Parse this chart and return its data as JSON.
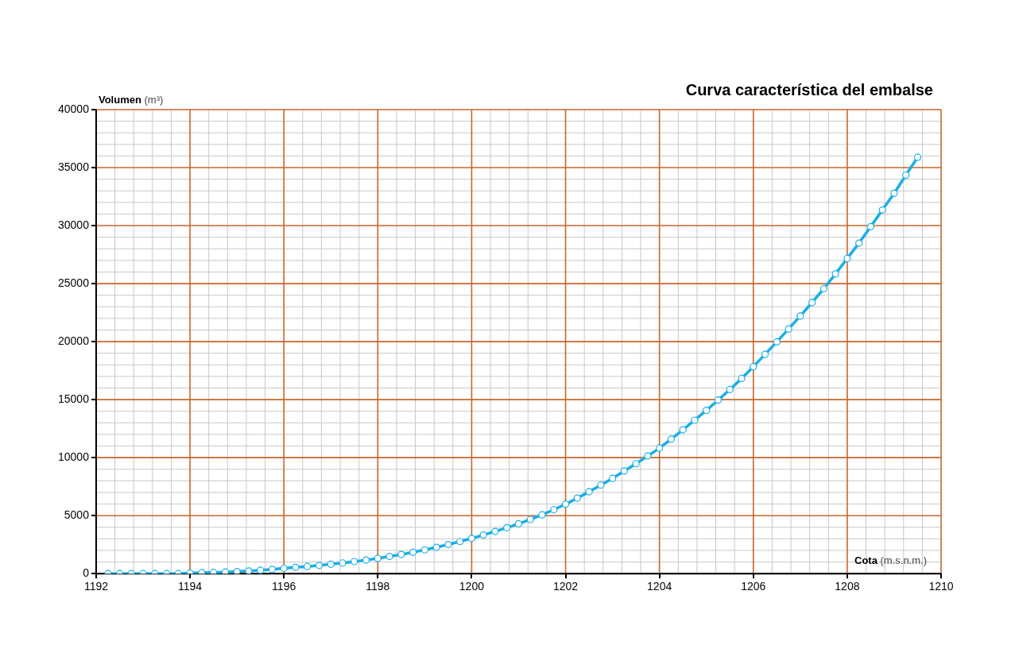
{
  "chart_data": {
    "type": "line",
    "title": "Curva característica del embalse",
    "xlabel": "Cota (m.s.n.m.)",
    "ylabel": "Volumen (m³)",
    "x": [
      1192.25,
      1192.5,
      1192.75,
      1193,
      1193.25,
      1193.5,
      1193.75,
      1194,
      1194.25,
      1194.5,
      1194.75,
      1195,
      1195.25,
      1195.5,
      1195.75,
      1196,
      1196.25,
      1196.5,
      1196.75,
      1197,
      1197.25,
      1197.5,
      1197.75,
      1198,
      1198.25,
      1198.5,
      1198.75,
      1199,
      1199.25,
      1199.5,
      1199.75,
      1200,
      1200.25,
      1200.5,
      1200.75,
      1201,
      1201.25,
      1201.5,
      1201.75,
      1202,
      1202.25,
      1202.5,
      1202.75,
      1203,
      1203.25,
      1203.5,
      1203.75,
      1204,
      1204.25,
      1204.5,
      1204.75,
      1205,
      1205.25,
      1205.5,
      1205.75,
      1206,
      1206.25,
      1206.5,
      1206.75,
      1207,
      1207.25,
      1207.5,
      1207.75,
      1208,
      1208.25,
      1208.5,
      1208.75,
      1209,
      1209.25,
      1209.5
    ],
    "series": [
      {
        "color": "#1aaee6",
        "values": [
          0,
          0,
          0,
          0,
          0,
          0,
          0,
          50,
          75,
          105,
          140,
          180,
          230,
          290,
          370,
          460,
          540,
          620,
          710,
          810,
          920,
          1040,
          1170,
          1320,
          1480,
          1650,
          1840,
          2050,
          2270,
          2510,
          2770,
          3040,
          3330,
          3640,
          3960,
          4300,
          4670,
          5070,
          5510,
          5990,
          6510,
          7060,
          7630,
          8220,
          8840,
          9480,
          10140,
          10820,
          11600,
          12400,
          13230,
          14080,
          14960,
          15870,
          16830,
          17840,
          18900,
          19980,
          21090,
          22210,
          23370,
          24560,
          25840,
          27170,
          28490,
          29910,
          31350,
          32790,
          34350,
          35900
        ]
      }
    ],
    "xlim": [
      1192,
      1210
    ],
    "xticks": [
      1192,
      1194,
      1196,
      1198,
      1200,
      1202,
      1204,
      1206,
      1208,
      1210
    ],
    "ylim": [
      0,
      40000
    ],
    "yticks": [
      0,
      5000,
      10000,
      15000,
      20000,
      25000,
      30000,
      35000,
      40000
    ],
    "grid": true,
    "legend": false,
    "marker": "circle",
    "line_style": "solid"
  }
}
